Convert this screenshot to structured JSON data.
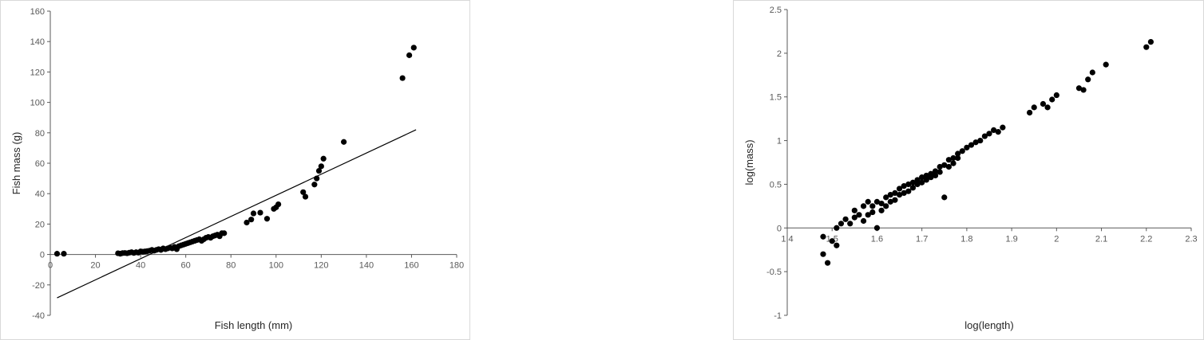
{
  "chart_data": [
    {
      "type": "scatter",
      "title": "",
      "xlabel": "Fish length (mm)",
      "ylabel": "Fish mass (g)",
      "xlim": [
        0,
        180
      ],
      "ylim": [
        -40,
        160
      ],
      "xticks": [
        0,
        20,
        40,
        60,
        80,
        100,
        120,
        140,
        160,
        180
      ],
      "yticks": [
        -40,
        -20,
        0,
        20,
        40,
        60,
        80,
        100,
        120,
        140,
        160
      ],
      "grid": false,
      "legend": "none",
      "marker_color": "#000000",
      "trendline": {
        "type": "linear",
        "x": [
          3,
          162
        ],
        "y": [
          -28.5,
          82
        ]
      },
      "points": {
        "x": [
          3,
          6,
          30,
          31,
          32,
          33,
          34,
          35,
          36,
          37,
          38,
          39,
          40,
          41,
          42,
          43,
          44,
          45,
          46,
          47,
          48,
          49,
          50,
          51,
          52,
          53,
          54,
          55,
          56,
          57,
          58,
          59,
          60,
          61,
          62,
          63,
          64,
          65,
          66,
          67,
          68,
          69,
          70,
          71,
          72,
          73,
          74,
          75,
          76,
          77,
          87,
          89,
          90,
          93,
          96,
          99,
          100,
          101,
          112,
          113,
          117,
          118,
          119,
          120,
          121,
          130,
          156,
          159,
          161
        ],
        "y": [
          0.5,
          0.5,
          0.8,
          0.5,
          0.9,
          1.0,
          0.8,
          1.2,
          1.5,
          1.0,
          1.5,
          1.2,
          2.0,
          1.8,
          2.0,
          2.2,
          2.5,
          3.0,
          2.5,
          3.0,
          3.5,
          3.0,
          4.0,
          3.5,
          4.0,
          4.5,
          4.0,
          5.0,
          3.5,
          5.5,
          6.0,
          6.5,
          7.0,
          7.5,
          8.0,
          8.5,
          9.0,
          9.5,
          10.0,
          9.0,
          10.0,
          11.0,
          11.5,
          11.0,
          12.0,
          12.5,
          13.0,
          12.0,
          14.0,
          14.0,
          21.0,
          23.0,
          27.0,
          27.5,
          23.5,
          30.0,
          31.0,
          33.0,
          41.0,
          38.0,
          46.0,
          50.0,
          55.0,
          58.0,
          63.0,
          74.0,
          116.0,
          131.0,
          136.0
        ]
      }
    },
    {
      "type": "scatter",
      "title": "",
      "xlabel": "log(length)",
      "ylabel": "log(mass)",
      "xlim": [
        1.4,
        2.3
      ],
      "ylim": [
        -1,
        2.5
      ],
      "xticks": [
        1.4,
        1.5,
        1.6,
        1.7,
        1.8,
        1.9,
        2,
        2.1,
        2.2,
        2.3
      ],
      "yticks": [
        -1,
        -0.5,
        0,
        0.5,
        1,
        1.5,
        2,
        2.5
      ],
      "grid": false,
      "legend": "none",
      "marker_color": "#000000",
      "points": {
        "x": [
          1.48,
          1.48,
          1.49,
          1.5,
          1.51,
          1.51,
          1.52,
          1.53,
          1.54,
          1.55,
          1.55,
          1.56,
          1.57,
          1.57,
          1.58,
          1.58,
          1.59,
          1.59,
          1.6,
          1.6,
          1.61,
          1.61,
          1.62,
          1.62,
          1.63,
          1.63,
          1.64,
          1.64,
          1.65,
          1.65,
          1.66,
          1.66,
          1.67,
          1.67,
          1.68,
          1.68,
          1.69,
          1.69,
          1.7,
          1.7,
          1.71,
          1.71,
          1.72,
          1.72,
          1.73,
          1.73,
          1.74,
          1.74,
          1.75,
          1.75,
          1.76,
          1.76,
          1.77,
          1.77,
          1.78,
          1.78,
          1.79,
          1.8,
          1.81,
          1.82,
          1.83,
          1.84,
          1.85,
          1.86,
          1.87,
          1.88,
          1.94,
          1.95,
          1.97,
          1.98,
          1.99,
          2.0,
          2.05,
          2.06,
          2.07,
          2.08,
          2.11,
          2.2,
          2.21
        ],
        "y": [
          -0.1,
          -0.3,
          -0.4,
          -0.15,
          -0.2,
          0.0,
          0.05,
          0.1,
          0.05,
          0.2,
          0.12,
          0.15,
          0.25,
          0.08,
          0.3,
          0.15,
          0.25,
          0.18,
          0.3,
          0.0,
          0.28,
          0.2,
          0.35,
          0.25,
          0.38,
          0.3,
          0.4,
          0.32,
          0.45,
          0.38,
          0.48,
          0.4,
          0.5,
          0.42,
          0.52,
          0.46,
          0.55,
          0.5,
          0.58,
          0.52,
          0.6,
          0.55,
          0.62,
          0.58,
          0.65,
          0.6,
          0.7,
          0.64,
          0.72,
          0.35,
          0.78,
          0.7,
          0.8,
          0.74,
          0.85,
          0.8,
          0.88,
          0.92,
          0.95,
          0.98,
          1.0,
          1.05,
          1.08,
          1.12,
          1.1,
          1.15,
          1.32,
          1.38,
          1.42,
          1.38,
          1.47,
          1.52,
          1.6,
          1.58,
          1.7,
          1.78,
          1.87,
          2.07,
          2.13
        ]
      }
    }
  ]
}
